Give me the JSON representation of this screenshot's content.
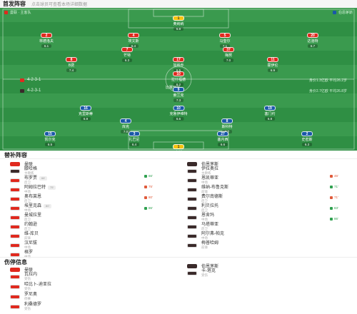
{
  "header": {
    "title": "首发阵容",
    "subtitle": "点击球员可查看本场详细数据"
  },
  "pitch": {
    "home_team": "曼联 · 主客队",
    "away_team": "伯恩茅斯",
    "home_formation": "4-2-3-1",
    "away_formation": "4-2-3-1",
    "home_stats": "身价1.3亿欧 平均26.2岁",
    "away_stats": "身价2.7亿欧 平均26.8岁",
    "center_label": "比赛开始",
    "home_players": [
      {
        "num": "1",
        "name": "奥纳纳",
        "rating": "6.8",
        "kind": "gk"
      },
      {
        "num": "2",
        "name": "林德洛夫",
        "rating": "6.1",
        "kind": "red"
      },
      {
        "num": "4",
        "name": "埃文斯",
        "rating": "6.4",
        "kind": "red"
      },
      {
        "num": "5",
        "name": "马奎尔",
        "rating": "7.1",
        "kind": "red"
      },
      {
        "num": "20",
        "name": "达洛特",
        "rating": "6.7",
        "kind": "red"
      },
      {
        "num": "7",
        "name": "芒特",
        "rating": "6.3",
        "kind": "red"
      },
      {
        "num": "37",
        "name": "梅努",
        "rating": "7.0",
        "kind": "red"
      },
      {
        "num": "8",
        "name": "B费",
        "rating": "7.4",
        "kind": "red"
      },
      {
        "num": "17",
        "name": "加纳乔",
        "rating": "6.5",
        "kind": "red"
      },
      {
        "num": "11",
        "name": "霍伊伦",
        "rating": "6.9",
        "kind": "red"
      },
      {
        "num": "10",
        "name": "拉什福德",
        "rating": "6.2",
        "kind": "red"
      }
    ],
    "away_players": [
      {
        "num": "9",
        "name": "索兰克",
        "rating": "7.3",
        "kind": "blue"
      },
      {
        "num": "16",
        "name": "克里斯蒂",
        "rating": "6.9",
        "kind": "blue"
      },
      {
        "num": "10",
        "name": "克鲁伊维特",
        "rating": "6.6",
        "kind": "blue"
      },
      {
        "num": "19",
        "name": "塞门约",
        "rating": "6.8",
        "kind": "blue"
      },
      {
        "num": "4",
        "name": "库克",
        "rating": "7.0",
        "kind": "blue"
      },
      {
        "num": "8",
        "name": "斯科特",
        "rating": "6.7",
        "kind": "blue"
      },
      {
        "num": "15",
        "name": "凯尔克",
        "rating": "6.5",
        "kind": "blue"
      },
      {
        "num": "3",
        "name": "扎巴尼",
        "rating": "6.4",
        "kind": "blue"
      },
      {
        "num": "27",
        "name": "塞内西",
        "rating": "6.6",
        "kind": "blue"
      },
      {
        "num": "2",
        "name": "史密斯",
        "rating": "6.3",
        "kind": "blue"
      },
      {
        "num": "1",
        "name": "内托",
        "rating": "7.1",
        "kind": "gk"
      }
    ]
  },
  "subs": {
    "title": "替补阵容",
    "home_team": "曼联",
    "away_team": "伯恩茅斯",
    "coach_label": "主教练",
    "home_coach": "滕哈格",
    "away_coach": "伊拉奥拉",
    "home": [
      {
        "name": "布罗贾",
        "pos": "后卫",
        "time": "66'",
        "kind": "red"
      },
      {
        "name": "阿姆拉巴特",
        "pos": "中场",
        "time": "75'",
        "kind": "red"
      },
      {
        "name": "奥布莱恩",
        "pos": "后卫",
        "time": "",
        "kind": "red"
      },
      {
        "name": "埃里克森",
        "pos": "中场",
        "time": "80'",
        "kind": "red"
      },
      {
        "name": "曼城拉里",
        "pos": "后卫",
        "time": "",
        "kind": "red"
      },
      {
        "name": "约翰逊",
        "pos": "后卫",
        "time": "",
        "kind": "red"
      },
      {
        "name": "维-库贝",
        "pos": "前锋",
        "time": "",
        "kind": "red"
      },
      {
        "name": "汉尼拔",
        "pos": "中场",
        "time": "",
        "kind": "red"
      },
      {
        "name": "格罗",
        "pos": "中场",
        "time": "",
        "kind": "red"
      }
    ],
    "away": [
      {
        "name": "恩凯蒂亚",
        "pos": "中场",
        "time": "",
        "kind": "dark"
      },
      {
        "name": "维纳-布鲁克斯",
        "pos": "前锋",
        "time": "",
        "kind": "dark"
      },
      {
        "name": "费尔南德斯",
        "pos": "后卫",
        "time": "",
        "kind": "dark"
      },
      {
        "name": "利贝拉托",
        "pos": "后卫",
        "time": "",
        "kind": "dark"
      },
      {
        "name": "恩舍玛",
        "pos": "中场",
        "time": "",
        "kind": "dark"
      },
      {
        "name": "马塔蒂亚",
        "pos": "后卫",
        "time": "",
        "kind": "dark"
      },
      {
        "name": "阿尔弗-帕克",
        "pos": "中场",
        "time": "",
        "kind": "dark"
      },
      {
        "name": "梅普哈姆",
        "pos": "前锋",
        "time": "",
        "kind": "dark"
      }
    ],
    "mid_events": [
      {
        "text": "66'",
        "kind": "g"
      },
      {
        "text": "75'",
        "kind": "r"
      },
      {
        "text": "80'",
        "kind": "r"
      },
      {
        "text": "86'",
        "kind": "g"
      }
    ],
    "right_events": [
      {
        "text": "46'",
        "kind": "r"
      },
      {
        "text": "71'",
        "kind": "g"
      },
      {
        "text": "71'",
        "kind": "r"
      },
      {
        "text": "83'",
        "kind": "g"
      },
      {
        "text": "86'",
        "kind": "g"
      }
    ]
  },
  "injuries": {
    "title": "伤停信息",
    "home_team": "曼联",
    "away_team": "伯恩茅斯",
    "home": [
      {
        "name": "瓦拉内",
        "pos": "受伤"
      },
      {
        "name": "哈比卜-迪亚拉",
        "pos": "受伤"
      },
      {
        "name": "罗尼奥",
        "pos": "停赛"
      },
      {
        "name": "利桑德罗",
        "pos": "受伤"
      }
    ],
    "away": [
      {
        "name": "卡-塔克",
        "pos": "受伤"
      }
    ]
  },
  "colors": {
    "home": "#e0291e",
    "away": "#1a58a8",
    "pitch": "#2f8f44"
  }
}
